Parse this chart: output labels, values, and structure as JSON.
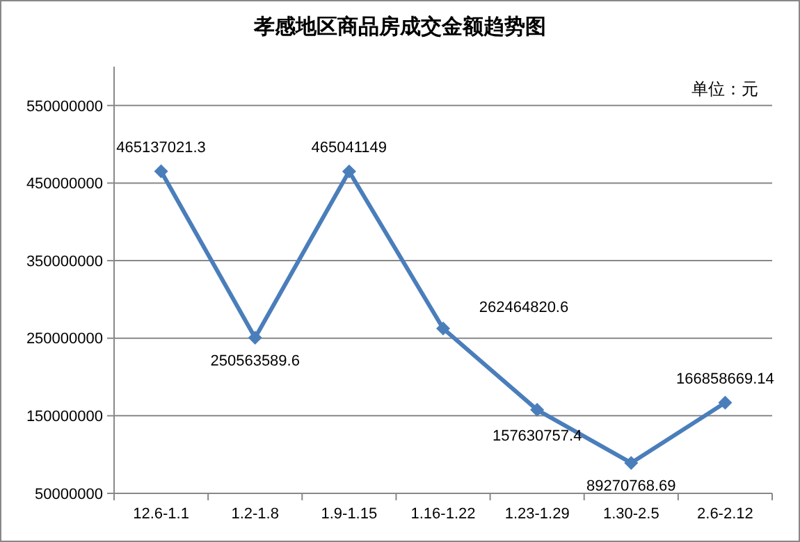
{
  "chart_data": {
    "type": "line",
    "title": "孝感地区商品房成交金额趋势图",
    "annotations": [
      "单位：元"
    ],
    "categories": [
      "12.6-1.1",
      "1.2-1.8",
      "1.9-1.15",
      "1.16-1.22",
      "1.23-1.29",
      "1.30-2.5",
      "2.6-2.12"
    ],
    "series": [
      {
        "color": "#4a7ebb",
        "values": [
          465137021.3,
          250563589.6,
          465041149,
          262464820.6,
          157630757.4,
          89270768.69,
          166858669.14
        ]
      }
    ],
    "ylim": [
      50000000,
      600000000
    ],
    "yticks": [
      50000000,
      150000000,
      250000000,
      350000000,
      450000000,
      550000000
    ],
    "grid": "y",
    "marker": "diamond",
    "data_labels": true
  }
}
